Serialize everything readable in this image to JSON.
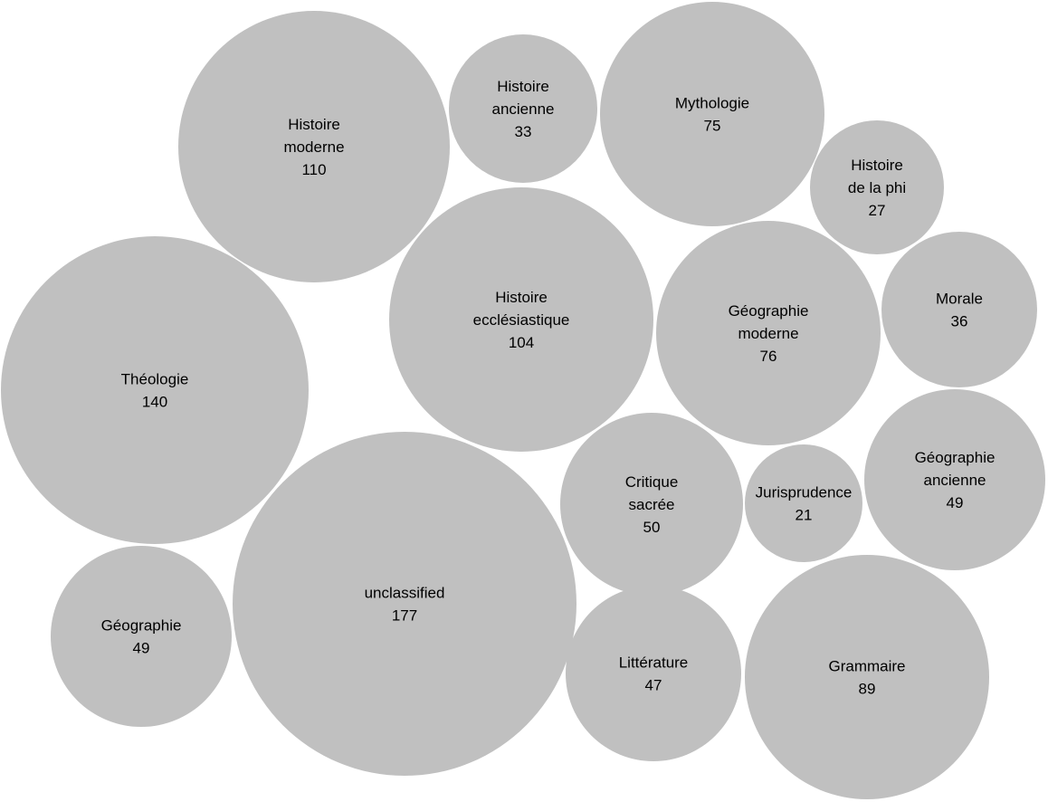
{
  "chart_data": {
    "type": "bubble",
    "title": "",
    "bubble_color": "#c0c0c0",
    "text_color": "#000000",
    "bubbles": [
      {
        "name": "Histoire moderne",
        "label_lines": [
          "Histoire",
          "moderne"
        ],
        "value": 110
      },
      {
        "name": "Histoire ancienne",
        "label_lines": [
          "Histoire",
          "ancienne"
        ],
        "value": 33
      },
      {
        "name": "Mythologie",
        "label_lines": [
          "Mythologie"
        ],
        "value": 75
      },
      {
        "name": "Histoire de la phi",
        "label_lines": [
          "Histoire",
          "de la phi"
        ],
        "value": 27
      },
      {
        "name": "Morale",
        "label_lines": [
          "Morale"
        ],
        "value": 36
      },
      {
        "name": "Théologie",
        "label_lines": [
          "Théologie"
        ],
        "value": 140
      },
      {
        "name": "Histoire ecclésiastique",
        "label_lines": [
          "Histoire",
          "ecclésiastique"
        ],
        "value": 104
      },
      {
        "name": "Géographie moderne",
        "label_lines": [
          "Géographie",
          "moderne"
        ],
        "value": 76
      },
      {
        "name": "Géographie ancienne",
        "label_lines": [
          "Géographie",
          "ancienne"
        ],
        "value": 49
      },
      {
        "name": "Critique sacrée",
        "label_lines": [
          "Critique",
          "sacrée"
        ],
        "value": 50
      },
      {
        "name": "Jurisprudence",
        "label_lines": [
          "Jurisprudence"
        ],
        "value": 21
      },
      {
        "name": "unclassified",
        "label_lines": [
          "unclassified"
        ],
        "value": 177
      },
      {
        "name": "Géographie",
        "label_lines": [
          "Géographie"
        ],
        "value": 49
      },
      {
        "name": "Littérature",
        "label_lines": [
          "Littérature"
        ],
        "value": 47
      },
      {
        "name": "Grammaire",
        "label_lines": [
          "Grammaire"
        ],
        "value": 89
      }
    ]
  }
}
